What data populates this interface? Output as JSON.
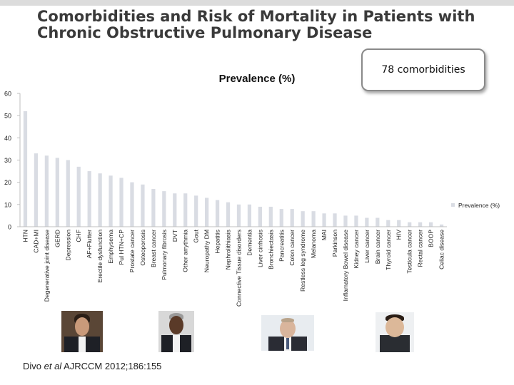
{
  "title": {
    "line1": "Comorbidities and Risk of Mortality in Patients with",
    "line2": "Chronic Obstructive Pulmonary Disease"
  },
  "badge": {
    "text": "78 comorbidities"
  },
  "citation": {
    "prefix": "Divo ",
    "italic": "et al",
    "suffix": " AJRCCM 2012;186:155"
  },
  "colors": {
    "bar": "#d9dce3",
    "axis": "#bfbfbf",
    "text": "#222222"
  },
  "chart_data": {
    "type": "bar",
    "title": "Prevalence (%)",
    "xlabel": "",
    "ylabel": "",
    "ylim": [
      0,
      60
    ],
    "yticks": [
      0,
      10,
      20,
      30,
      40,
      50,
      60
    ],
    "legend": {
      "label": "Prevalence (%)",
      "position": "right"
    },
    "categories": [
      "HTN",
      "CAD+MI",
      "Degenerative joint disease",
      "GERD",
      "Depression",
      "CHF",
      "AF+Flutter",
      "Erectile dysfunction",
      "Emphysema",
      "Pul HTN+CP",
      "Prostate cancer",
      "Osteoporosis",
      "Breast cancer",
      "Pulmonary fibrosis",
      "DVT",
      "Other arrythmia",
      "Gout",
      "Neuropathy DM",
      "Hepatitis",
      "Nephrolithiasis",
      "Connective Tissue disorders",
      "Dementia",
      "Liver cirrhosis",
      "Bronchiectasis",
      "Pancreatitis",
      "Colon cancer",
      "Restless leg syndrome",
      "Melanoma",
      "MAI",
      "Parkinson",
      "Inflamatory Bowel disease",
      "Kidney cancer",
      "Liver cancer",
      "Brain cancer",
      "Thyroid cancer",
      "HIV",
      "Testicula cancer",
      "Rectal cancer",
      "BOOP",
      "Celiac disease"
    ],
    "values": [
      52,
      33,
      32,
      31,
      30,
      27,
      25,
      24,
      23,
      22,
      20,
      19,
      17,
      16,
      15,
      15,
      14,
      13,
      12,
      11,
      10,
      10,
      9,
      9,
      8,
      8,
      7,
      7,
      6,
      6,
      5,
      5,
      4,
      4,
      3,
      3,
      2,
      2,
      2,
      1
    ]
  }
}
